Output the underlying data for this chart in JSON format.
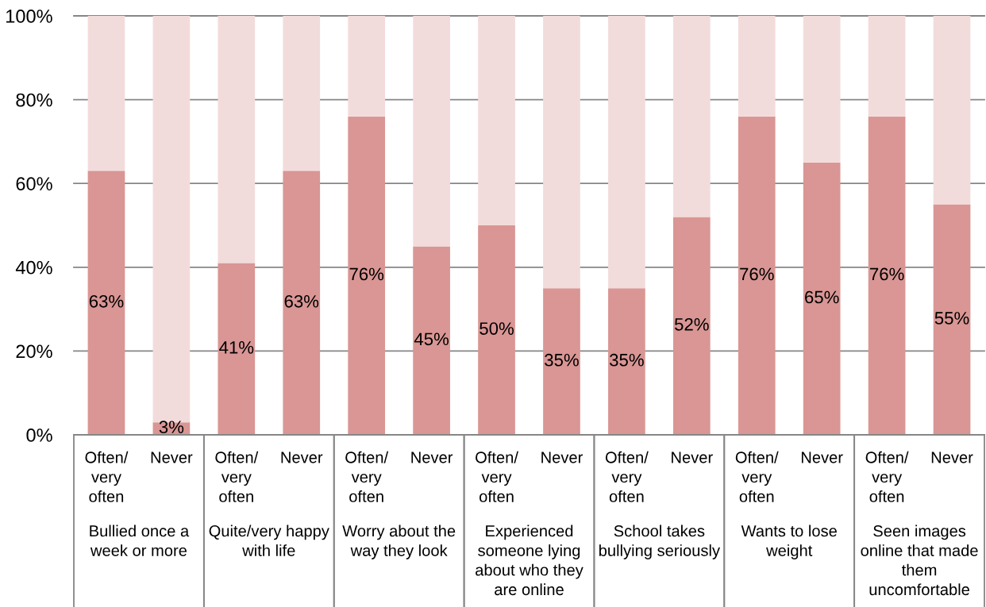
{
  "chart_data": {
    "type": "bar",
    "stacked": true,
    "grid": "y",
    "categories": [
      "Often/\nvery\noften",
      "Never",
      "Often/\nvery\noften",
      "Never",
      "Often/\nvery\noften",
      "Never",
      "Often/\nvery\noften",
      "Never",
      "Often/\nvery\noften",
      "Never",
      "Often/\nvery\noften",
      "Never",
      "Often/\nvery\noften",
      "Never"
    ],
    "series": [
      {
        "color": "#d99694",
        "values": [
          63,
          3,
          41,
          63,
          76,
          45,
          50,
          35,
          35,
          52,
          76,
          65,
          76,
          55
        ],
        "value_labels": [
          "63%",
          "3%",
          "41%",
          "63%",
          "76%",
          "45%",
          "50%",
          "35%",
          "35%",
          "52%",
          "76%",
          "65%",
          "76%",
          "55%"
        ]
      },
      {
        "color": "#f2dcdb",
        "values": [
          37,
          97,
          59,
          37,
          24,
          55,
          50,
          65,
          65,
          48,
          24,
          35,
          24,
          45
        ]
      }
    ],
    "ylim": [
      0,
      100
    ],
    "yticks": [
      {
        "value": 0,
        "label": "0%"
      },
      {
        "value": 20,
        "label": "20%"
      },
      {
        "value": 40,
        "label": "40%"
      },
      {
        "value": 60,
        "label": "60%"
      },
      {
        "value": 80,
        "label": "80%"
      },
      {
        "value": 100,
        "label": "100%"
      }
    ],
    "annotations": [
      "Bullied once a\nweek or more",
      "Quite/very happy\nwith life",
      "Worry about the\nway they look",
      "Experienced\nsomeone lying\nabout who they\nare online",
      "School takes\nbullying seriously",
      "Wants to lose\nweight",
      "Seen images\nonline that made\nthem\nuncomfortable"
    ]
  }
}
